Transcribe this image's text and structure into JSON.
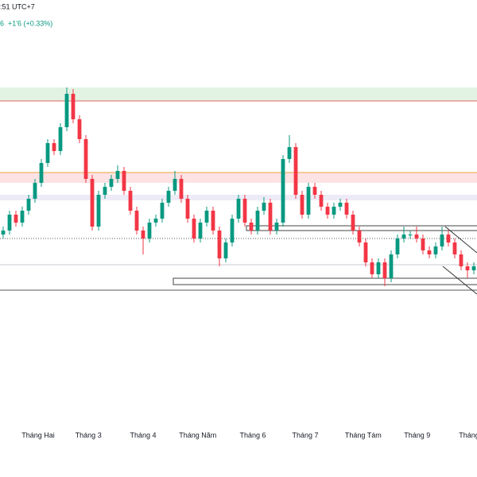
{
  "header": {
    "time": ":51 UTC+7",
    "price": "6",
    "change": "+1'6 (+0.33%)"
  },
  "chart_data": {
    "type": "candlestick",
    "up_color": "#089981",
    "down_color": "#f23645",
    "open": [
      235,
      240,
      260,
      250,
      265,
      280,
      300,
      325,
      350,
      340,
      370,
      412,
      380,
      355,
      305,
      245,
      285,
      295,
      305,
      315,
      290,
      265,
      240,
      230,
      250,
      255,
      275,
      290,
      305,
      280,
      255,
      230,
      250,
      265,
      240,
      205,
      225,
      255,
      280,
      250,
      240,
      265,
      275,
      240,
      250,
      330,
      345,
      285,
      260,
      295,
      285,
      270,
      260,
      270,
      275,
      260,
      240,
      225,
      200,
      185,
      200,
      180,
      210,
      230,
      235,
      235,
      230,
      215,
      210,
      220,
      235,
      225,
      210,
      195,
      190
    ],
    "high": [
      245,
      265,
      265,
      270,
      285,
      305,
      330,
      355,
      355,
      375,
      420,
      418,
      385,
      360,
      310,
      290,
      300,
      310,
      322,
      320,
      295,
      270,
      245,
      255,
      260,
      280,
      295,
      315,
      310,
      285,
      260,
      255,
      270,
      270,
      245,
      230,
      260,
      285,
      285,
      255,
      270,
      282,
      280,
      255,
      335,
      360,
      350,
      290,
      300,
      300,
      290,
      275,
      275,
      280,
      280,
      265,
      245,
      230,
      205,
      205,
      205,
      215,
      235,
      245,
      240,
      245,
      235,
      220,
      225,
      245,
      240,
      230,
      215,
      200,
      200
    ],
    "low": [
      230,
      235,
      245,
      245,
      260,
      275,
      295,
      320,
      335,
      335,
      365,
      375,
      350,
      300,
      240,
      240,
      280,
      290,
      300,
      285,
      260,
      235,
      210,
      225,
      245,
      250,
      270,
      285,
      275,
      250,
      225,
      225,
      245,
      235,
      195,
      200,
      220,
      250,
      245,
      235,
      235,
      260,
      235,
      235,
      245,
      325,
      280,
      255,
      255,
      280,
      265,
      255,
      255,
      265,
      255,
      235,
      220,
      195,
      180,
      180,
      170,
      175,
      205,
      225,
      230,
      225,
      210,
      205,
      205,
      215,
      220,
      205,
      190,
      180,
      185
    ],
    "close": [
      240,
      260,
      250,
      265,
      280,
      300,
      325,
      350,
      340,
      370,
      412,
      380,
      355,
      305,
      245,
      285,
      295,
      305,
      315,
      290,
      265,
      240,
      230,
      250,
      255,
      275,
      290,
      305,
      280,
      255,
      230,
      250,
      265,
      240,
      205,
      225,
      255,
      280,
      250,
      240,
      265,
      275,
      240,
      250,
      330,
      345,
      285,
      260,
      295,
      285,
      270,
      260,
      270,
      275,
      260,
      240,
      225,
      200,
      185,
      200,
      180,
      210,
      230,
      235,
      235,
      230,
      215,
      210,
      220,
      235,
      225,
      210,
      195,
      190,
      195
    ],
    "xlim": [
      -0.5,
      74.5
    ],
    "ylim": [
      0,
      530
    ],
    "xticks": [
      {
        "value": 5.5,
        "label": "Tháng Hai"
      },
      {
        "value": 13.4,
        "label": "Tháng 3"
      },
      {
        "value": 22,
        "label": "Tháng 4"
      },
      {
        "value": 30.6,
        "label": "Tháng Năm"
      },
      {
        "value": 39.25,
        "label": "Tháng 6"
      },
      {
        "value": 47.5,
        "label": "Tháng 7"
      },
      {
        "value": 56.6,
        "label": "Tháng Tám"
      },
      {
        "value": 65.1,
        "label": "Tháng 9"
      },
      {
        "value": 73.25,
        "label": "Tháng"
      }
    ]
  }
}
